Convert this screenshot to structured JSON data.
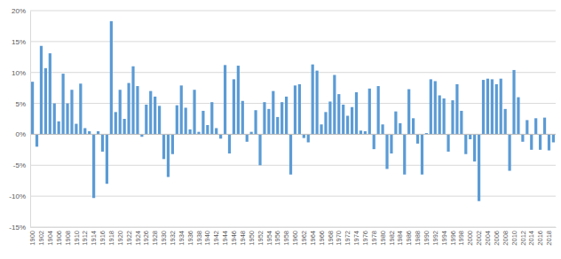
{
  "chart_data": {
    "type": "bar",
    "categories": [
      "1900",
      null,
      "1902",
      null,
      "1904",
      null,
      "1906",
      null,
      "1908",
      null,
      "1910",
      null,
      "1912",
      null,
      "1914",
      null,
      "1916",
      null,
      "1918",
      null,
      "1920",
      null,
      "1922",
      null,
      "1924",
      null,
      "1926",
      null,
      "1928",
      null,
      "1930",
      null,
      "1932",
      null,
      "1934",
      null,
      "1936",
      null,
      "1938",
      null,
      "1940",
      null,
      "1942",
      null,
      "1944",
      null,
      "1946",
      null,
      "1948",
      null,
      "1950",
      null,
      "1952",
      null,
      "1954",
      null,
      "1956",
      null,
      "1958",
      null,
      "1960",
      null,
      "1962",
      null,
      "1964",
      null,
      "1966",
      null,
      "1968",
      null,
      "1970",
      null,
      "1972",
      null,
      "1974",
      null,
      "1976",
      null,
      "1978",
      null,
      "1980",
      null,
      "1982",
      null,
      "1984",
      null,
      "1986",
      null,
      "1988",
      null,
      "1990",
      null,
      "1992",
      null,
      "1994",
      null,
      "1996",
      null,
      "1998",
      null,
      "2000",
      null,
      "2002",
      null,
      "2004",
      null,
      "2006",
      null,
      "2008",
      null,
      "2010",
      null,
      "2012",
      null,
      "2014",
      null,
      "2016",
      null,
      "2018",
      null
    ],
    "values": [
      8.5,
      -2,
      14.3,
      10.7,
      13.1,
      5,
      2.1,
      9.8,
      5,
      7.2,
      1.7,
      8.2,
      1,
      0.5,
      -10.3,
      0.5,
      -2.8,
      -8,
      18.3,
      3.6,
      7.2,
      2.5,
      8.3,
      11,
      7.8,
      -0.4,
      4.8,
      7,
      6.1,
      4.6,
      -4,
      -6.9,
      -3.2,
      4.7,
      7.9,
      4.3,
      0.8,
      7.2,
      0.4,
      3.8,
      1.5,
      5.2,
      1,
      -0.7,
      11.2,
      -3.1,
      8.9,
      11.1,
      5.4,
      -1.2,
      0.4,
      3.9,
      -5,
      5.2,
      4.1,
      7,
      2.8,
      5.2,
      6.1,
      -6.5,
      7.9,
      8.1,
      -0.6,
      -1.3,
      11.3,
      10.3,
      1.6,
      3.6,
      5.3,
      9.6,
      6.5,
      4.8,
      3,
      4.4,
      6.8,
      0.6,
      0.5,
      7.4,
      -2.4,
      7.8,
      1.6,
      -5.6,
      -3.1,
      3.7,
      1.8,
      -6.5,
      7.3,
      2.6,
      -1.5,
      -6.5,
      0.2,
      8.9,
      8.6,
      6.3,
      5.8,
      -2.8,
      5.5,
      8.1,
      3.8,
      -3.2,
      -0.8,
      -4.4,
      -10.8,
      8.8,
      9,
      8.9,
      8.1,
      9,
      4.1,
      -5.9,
      10.4,
      6,
      -1.2,
      2.3,
      -2.5,
      2.6,
      -2.5,
      2.7,
      -2.6,
      -1.3
    ],
    "color": "#5b9bd5",
    "ylim": [
      -15,
      20
    ],
    "yticks": [
      {
        "value": -15,
        "label": "-15%"
      },
      {
        "value": -10,
        "label": "-10%"
      },
      {
        "value": -5,
        "label": "-5%"
      },
      {
        "value": 0,
        "label": "0%"
      },
      {
        "value": 5,
        "label": "5%"
      },
      {
        "value": 10,
        "label": "10%"
      },
      {
        "value": 15,
        "label": "15%"
      },
      {
        "value": 20,
        "label": "20%"
      }
    ],
    "grid": true
  }
}
